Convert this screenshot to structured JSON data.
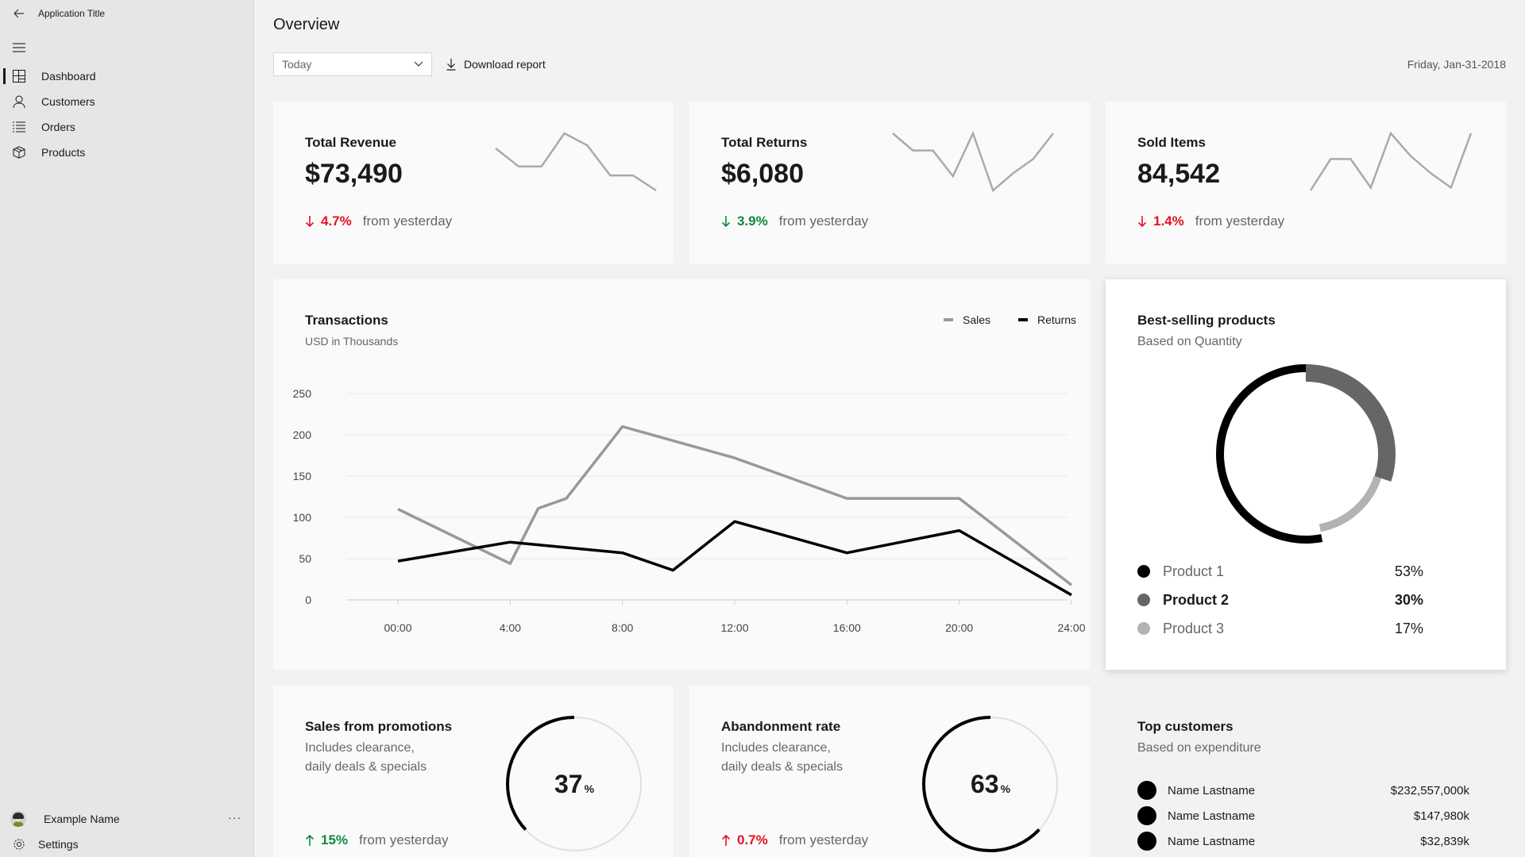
{
  "app": {
    "title": "Application Title"
  },
  "sidebar": {
    "items": [
      {
        "label": "Dashboard",
        "icon": "dashboard-icon",
        "active": true
      },
      {
        "label": "Customers",
        "icon": "person-icon"
      },
      {
        "label": "Orders",
        "icon": "list-icon"
      },
      {
        "label": "Products",
        "icon": "box-icon"
      }
    ],
    "user": {
      "name": "Example Name",
      "more": "···"
    },
    "settings_label": "Settings"
  },
  "header": {
    "title": "Overview",
    "period_select": "Today",
    "download_label": "Download report",
    "date": "Friday, Jan-31-2018"
  },
  "kpis": [
    {
      "title": "Total Revenue",
      "value": "$73,490",
      "change": "4.7%",
      "direction": "down",
      "status": "red",
      "change_text": "from yesterday",
      "spark": [
        90,
        78,
        78,
        100,
        92,
        72,
        72,
        62
      ]
    },
    {
      "title": "Total Returns",
      "value": "$6,080",
      "change": "3.9%",
      "direction": "down",
      "status": "green",
      "change_text": "from yesterday",
      "spark": [
        100,
        88,
        88,
        70,
        100,
        60,
        72,
        82,
        100
      ]
    },
    {
      "title": "Sold Items",
      "value": "84,542",
      "change": "1.4%",
      "direction": "down",
      "status": "red",
      "change_text": "from yesterday",
      "spark": [
        60,
        82,
        82,
        62,
        100,
        84,
        72,
        62,
        100
      ]
    }
  ],
  "transactions": {
    "title": "Transactions",
    "subtitle": "USD in Thousands",
    "legend": [
      "Sales",
      "Returns"
    ]
  },
  "chart_data": {
    "type": "line",
    "title": "Transactions",
    "subtitle": "USD in Thousands",
    "x_ticks": [
      "00:00",
      "4:00",
      "8:00",
      "12:00",
      "16:00",
      "20:00",
      "24:00"
    ],
    "y_ticks": [
      "0",
      "50",
      "100",
      "150",
      "200",
      "250"
    ],
    "ylim": [
      0,
      250
    ],
    "xlim": [
      0,
      24
    ],
    "grid": true,
    "legend_position": "top-right",
    "series": [
      {
        "name": "Sales",
        "color": "#999999",
        "x": [
          0,
          4,
          5,
          6,
          8,
          12,
          16,
          20,
          24
        ],
        "y": [
          110,
          44,
          111,
          123,
          210,
          172,
          123,
          123,
          18
        ]
      },
      {
        "name": "Returns",
        "color": "#000000",
        "x": [
          0,
          4,
          8,
          9.8,
          12,
          16,
          20,
          24
        ],
        "y": [
          47,
          70,
          57,
          36,
          95,
          57,
          84,
          6
        ]
      }
    ]
  },
  "best_selling": {
    "title": "Best-selling products",
    "subtitle": "Based on Quantity",
    "products": [
      {
        "name": "Product 1",
        "value": "53%",
        "fraction": 0.53,
        "color": "#000000",
        "bold": false
      },
      {
        "name": "Product 2",
        "value": "30%",
        "fraction": 0.3,
        "color": "#666666",
        "bold": true
      },
      {
        "name": "Product 3",
        "value": "17%",
        "fraction": 0.17,
        "color": "#b3b3b3",
        "bold": false
      }
    ]
  },
  "promotions": {
    "title": "Sales from promotions",
    "desc1": "Includes clearance,",
    "desc2": "daily deals & specials",
    "value": "37",
    "unit": "%",
    "fraction": 0.37,
    "change": "15%",
    "direction": "up",
    "status": "green",
    "change_text": "from yesterday"
  },
  "abandonment": {
    "title": "Abandonment rate",
    "desc1": "Includes clearance,",
    "desc2": "daily deals & specials",
    "value": "63",
    "unit": "%",
    "fraction": 0.63,
    "change": "0.7%",
    "direction": "up",
    "status": "red",
    "change_text": "from yesterday"
  },
  "top_customers": {
    "title": "Top customers",
    "subtitle": "Based on expenditure",
    "rows": [
      {
        "name": "Name Lastname",
        "value": "$232,557,000k"
      },
      {
        "name": "Name Lastname",
        "value": "$147,980k"
      },
      {
        "name": "Name Lastname",
        "value": "$32,839k"
      }
    ]
  }
}
